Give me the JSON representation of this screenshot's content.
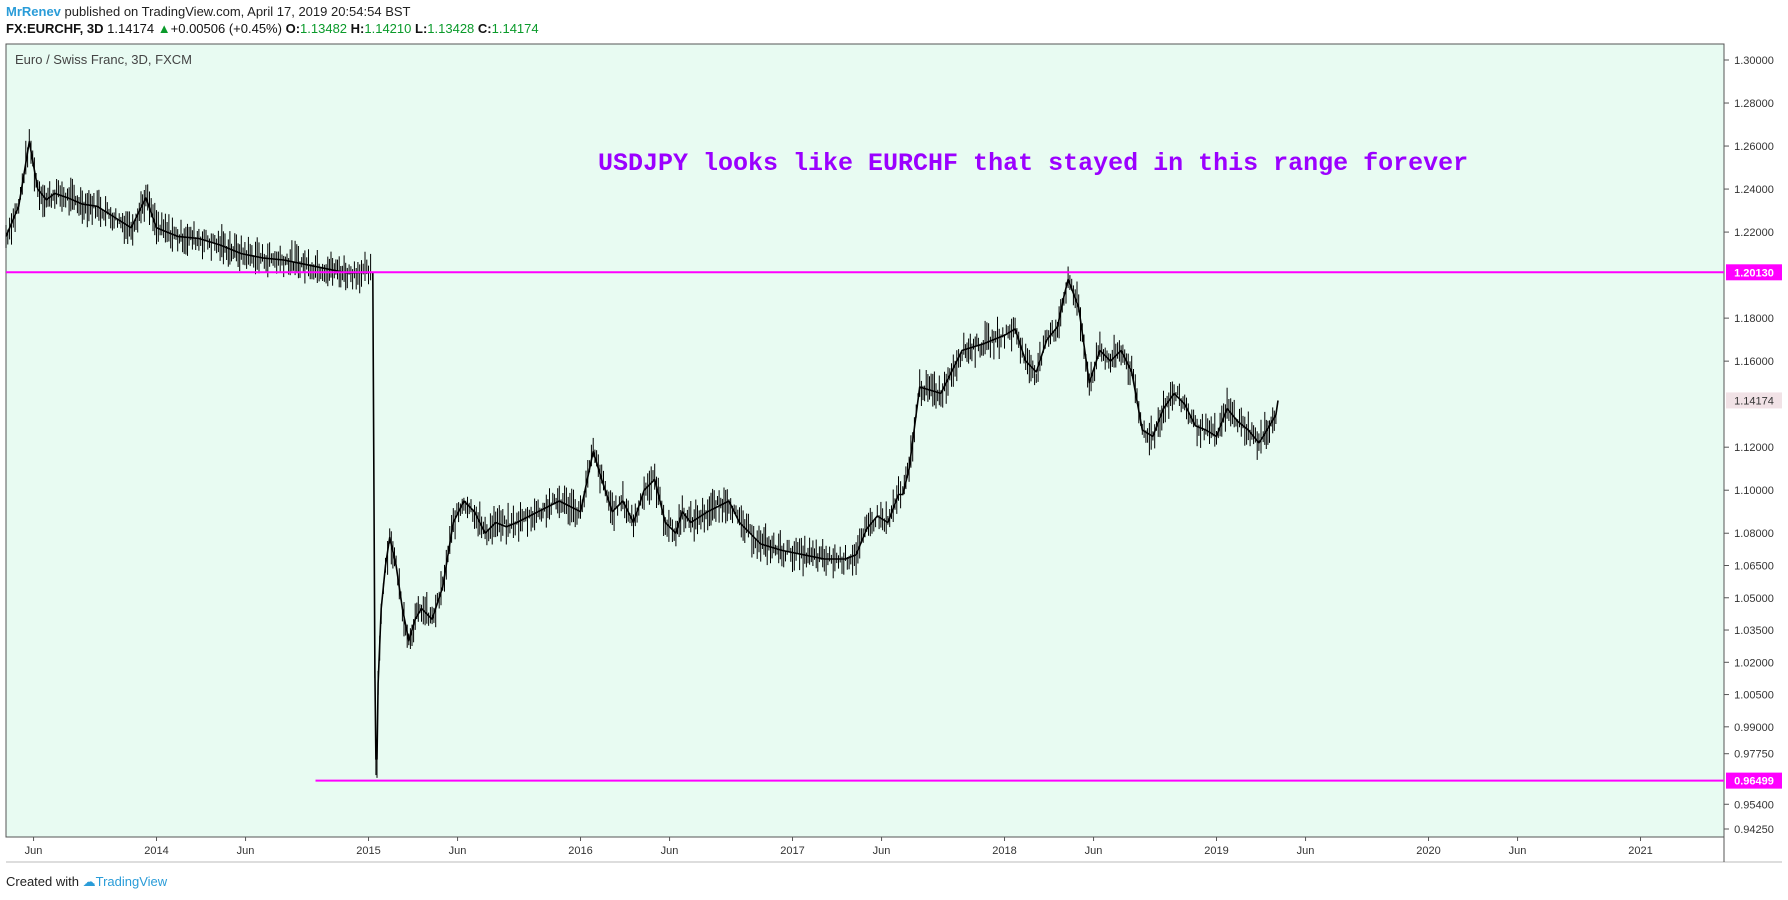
{
  "header": {
    "author": "MrRenev",
    "published_text": "published on TradingView.com, April 17, 2019 20:54:54 BST",
    "symbol": "FX:EURCHF, 3D",
    "last": "1.14174",
    "change": "+0.00506 (+0.45%)",
    "o_label": "O:",
    "o_value": "1.13482",
    "h_label": "H:",
    "h_value": "1.14210",
    "l_label": "L:",
    "l_value": "1.13428",
    "c_label": "C:",
    "c_value": "1.14174"
  },
  "footer": {
    "created_with": "Created with",
    "brand": "TradingView"
  },
  "colors": {
    "background": "#e8fbf2",
    "line": "#ff00ff",
    "annotation": "#9b00ff",
    "candle": "#000000",
    "up": "#0a9a2a"
  },
  "chart_data": {
    "type": "line",
    "title": "Euro / Swiss Franc, 3D, FXCM",
    "annotation": "USDJPY looks like EURCHF that stayed in this range forever",
    "xlabel": "",
    "ylabel": "",
    "xlim": [
      2013.29,
      2021.38
    ],
    "ylim": [
      0.9367,
      1.3075
    ],
    "grid": false,
    "x_ticks": [
      {
        "x": 2013.42,
        "label": "Jun"
      },
      {
        "x": 2014.0,
        "label": "2014"
      },
      {
        "x": 2014.42,
        "label": "Jun"
      },
      {
        "x": 2015.0,
        "label": "2015"
      },
      {
        "x": 2015.42,
        "label": "Jun"
      },
      {
        "x": 2016.0,
        "label": "2016"
      },
      {
        "x": 2016.42,
        "label": "Jun"
      },
      {
        "x": 2017.0,
        "label": "2017"
      },
      {
        "x": 2017.42,
        "label": "Jun"
      },
      {
        "x": 2018.0,
        "label": "2018"
      },
      {
        "x": 2018.42,
        "label": "Jun"
      },
      {
        "x": 2019.0,
        "label": "2019"
      },
      {
        "x": 2019.42,
        "label": "Jun"
      },
      {
        "x": 2020.0,
        "label": "2020"
      },
      {
        "x": 2020.42,
        "label": "Jun"
      },
      {
        "x": 2021.0,
        "label": "2021"
      }
    ],
    "y_ticks": [
      {
        "y": 1.3,
        "label": "1.30000"
      },
      {
        "y": 1.28,
        "label": "1.28000"
      },
      {
        "y": 1.26,
        "label": "1.26000"
      },
      {
        "y": 1.24,
        "label": "1.24000"
      },
      {
        "y": 1.22,
        "label": "1.22000"
      },
      {
        "y": 1.18,
        "label": "1.18000"
      },
      {
        "y": 1.16,
        "label": "1.16000"
      },
      {
        "y": 1.12,
        "label": "1.12000"
      },
      {
        "y": 1.1,
        "label": "1.10000"
      },
      {
        "y": 1.08,
        "label": "1.08000"
      },
      {
        "y": 1.065,
        "label": "1.06500"
      },
      {
        "y": 1.05,
        "label": "1.05000"
      },
      {
        "y": 1.035,
        "label": "1.03500"
      },
      {
        "y": 1.02,
        "label": "1.02000"
      },
      {
        "y": 1.005,
        "label": "1.00500"
      },
      {
        "y": 0.99,
        "label": "0.99000"
      },
      {
        "y": 0.9775,
        "label": "0.97750"
      },
      {
        "y": 0.954,
        "label": "0.95400"
      },
      {
        "y": 0.9425,
        "label": "0.94250"
      }
    ],
    "horizontal_lines": [
      {
        "y": 1.2013,
        "label": "1.20130",
        "x_start": 2013.29
      },
      {
        "y": 0.96499,
        "label": "0.96499",
        "x_start": 2014.75
      }
    ],
    "last_price": {
      "y": 1.14174,
      "label": "1.14174"
    },
    "series": [
      {
        "x": [
          2013.29,
          2013.35,
          2013.4,
          2013.44,
          2013.48,
          2013.52,
          2013.58,
          2013.65,
          2013.72,
          2013.8,
          2013.88,
          2013.95,
          2014.0,
          2014.05,
          2014.1,
          2014.2,
          2014.3,
          2014.4,
          2014.5,
          2014.6,
          2014.7,
          2014.8,
          2014.9,
          2015.0,
          2015.02,
          2015.03,
          2015.035,
          2015.04,
          2015.045,
          2015.06,
          2015.08,
          2015.1,
          2015.13,
          2015.16,
          2015.19,
          2015.22,
          2015.25,
          2015.3,
          2015.35,
          2015.4,
          2015.45,
          2015.5,
          2015.55,
          2015.6,
          2015.65,
          2015.7,
          2015.8,
          2015.9,
          2016.0,
          2016.06,
          2016.1,
          2016.15,
          2016.2,
          2016.25,
          2016.3,
          2016.35,
          2016.4,
          2016.45,
          2016.48,
          2016.52,
          2016.6,
          2016.7,
          2016.75,
          2016.85,
          2016.95,
          2017.05,
          2017.15,
          2017.25,
          2017.3,
          2017.35,
          2017.4,
          2017.45,
          2017.5,
          2017.52,
          2017.55,
          2017.6,
          2017.7,
          2017.8,
          2017.9,
          2018.0,
          2018.05,
          2018.1,
          2018.15,
          2018.2,
          2018.25,
          2018.28,
          2018.3,
          2018.35,
          2018.4,
          2018.45,
          2018.5,
          2018.55,
          2018.6,
          2018.65,
          2018.7,
          2018.75,
          2018.8,
          2018.85,
          2018.9,
          2018.95,
          2019.0,
          2019.05,
          2019.1,
          2019.15,
          2019.2,
          2019.22,
          2019.25,
          2019.28,
          2019.29
        ],
        "y": [
          1.218,
          1.232,
          1.262,
          1.24,
          1.235,
          1.238,
          1.236,
          1.233,
          1.232,
          1.227,
          1.222,
          1.236,
          1.222,
          1.22,
          1.218,
          1.217,
          1.214,
          1.21,
          1.208,
          1.207,
          1.205,
          1.203,
          1.201,
          1.2013,
          1.2013,
          1.015,
          0.975,
          0.975,
          1.01,
          1.045,
          1.065,
          1.078,
          1.065,
          1.045,
          1.03,
          1.04,
          1.045,
          1.04,
          1.055,
          1.085,
          1.095,
          1.09,
          1.08,
          1.085,
          1.083,
          1.085,
          1.09,
          1.095,
          1.09,
          1.118,
          1.105,
          1.09,
          1.095,
          1.085,
          1.1,
          1.105,
          1.085,
          1.08,
          1.09,
          1.085,
          1.09,
          1.095,
          1.085,
          1.075,
          1.072,
          1.07,
          1.068,
          1.068,
          1.07,
          1.082,
          1.088,
          1.085,
          1.098,
          1.098,
          1.11,
          1.148,
          1.145,
          1.165,
          1.168,
          1.172,
          1.175,
          1.16,
          1.155,
          1.17,
          1.176,
          1.19,
          1.198,
          1.185,
          1.15,
          1.165,
          1.16,
          1.165,
          1.155,
          1.128,
          1.125,
          1.138,
          1.145,
          1.14,
          1.13,
          1.128,
          1.125,
          1.138,
          1.132,
          1.128,
          1.122,
          1.125,
          1.13,
          1.135,
          1.1417
        ]
      }
    ]
  }
}
